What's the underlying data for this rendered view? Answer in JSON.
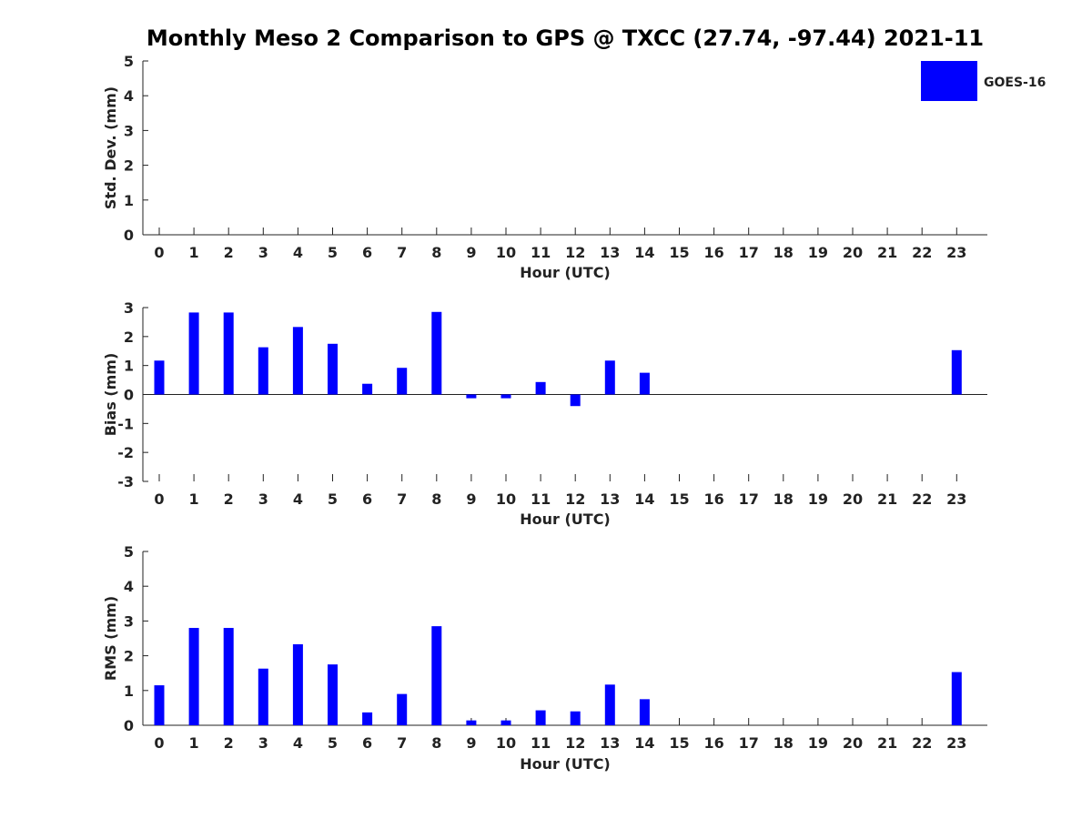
{
  "title": "Monthly Meso 2 Comparison to GPS @ TXCC (27.74, -97.44) 2021-11",
  "legend": {
    "label": "GOES-16",
    "color": "#0000ff",
    "placement": "top-right"
  },
  "chart_data": [
    {
      "type": "bar",
      "ylabel": "Std. Dev. (mm)",
      "xlabel": "Hour (UTC)",
      "ylim": [
        0,
        5
      ],
      "yticks": [
        "0",
        "1",
        "2",
        "3",
        "4",
        "5"
      ],
      "categories": [
        "0",
        "1",
        "2",
        "3",
        "4",
        "5",
        "6",
        "7",
        "8",
        "9",
        "10",
        "11",
        "12",
        "13",
        "14",
        "15",
        "16",
        "17",
        "18",
        "19",
        "20",
        "21",
        "22",
        "23"
      ],
      "values": [
        null,
        null,
        null,
        null,
        null,
        null,
        null,
        null,
        null,
        null,
        null,
        null,
        null,
        null,
        null,
        null,
        null,
        null,
        null,
        null,
        null,
        null,
        null,
        null
      ],
      "series": [
        {
          "name": "GOES-16",
          "color": "#0000ff"
        }
      ],
      "grid": false
    },
    {
      "type": "bar",
      "ylabel": "Bias (mm)",
      "xlabel": "Hour (UTC)",
      "ylim": [
        -3,
        3
      ],
      "yticks": [
        "-3",
        "-2",
        "-1",
        "0",
        "1",
        "2",
        "3"
      ],
      "categories": [
        "0",
        "1",
        "2",
        "3",
        "4",
        "5",
        "6",
        "7",
        "8",
        "9",
        "10",
        "11",
        "12",
        "13",
        "14",
        "15",
        "16",
        "17",
        "18",
        "19",
        "20",
        "21",
        "22",
        "23"
      ],
      "values": [
        1.17,
        2.83,
        2.83,
        1.63,
        2.33,
        1.75,
        0.37,
        0.92,
        2.85,
        -0.13,
        -0.13,
        0.43,
        -0.4,
        1.17,
        0.75,
        null,
        null,
        null,
        null,
        null,
        null,
        null,
        null,
        1.53
      ],
      "series": [
        {
          "name": "GOES-16",
          "color": "#0000ff"
        }
      ],
      "grid": false
    },
    {
      "type": "bar",
      "ylabel": "RMS (mm)",
      "xlabel": "Hour (UTC)",
      "ylim": [
        0,
        5
      ],
      "yticks": [
        "0",
        "1",
        "2",
        "3",
        "4",
        "5"
      ],
      "categories": [
        "0",
        "1",
        "2",
        "3",
        "4",
        "5",
        "6",
        "7",
        "8",
        "9",
        "10",
        "11",
        "12",
        "13",
        "14",
        "15",
        "16",
        "17",
        "18",
        "19",
        "20",
        "21",
        "22",
        "23"
      ],
      "values": [
        1.15,
        2.8,
        2.8,
        1.63,
        2.33,
        1.75,
        0.37,
        0.9,
        2.85,
        0.14,
        0.14,
        0.43,
        0.4,
        1.17,
        0.75,
        null,
        null,
        null,
        null,
        null,
        null,
        null,
        null,
        1.53
      ],
      "series": [
        {
          "name": "GOES-16",
          "color": "#0000ff"
        }
      ],
      "grid": false
    }
  ]
}
